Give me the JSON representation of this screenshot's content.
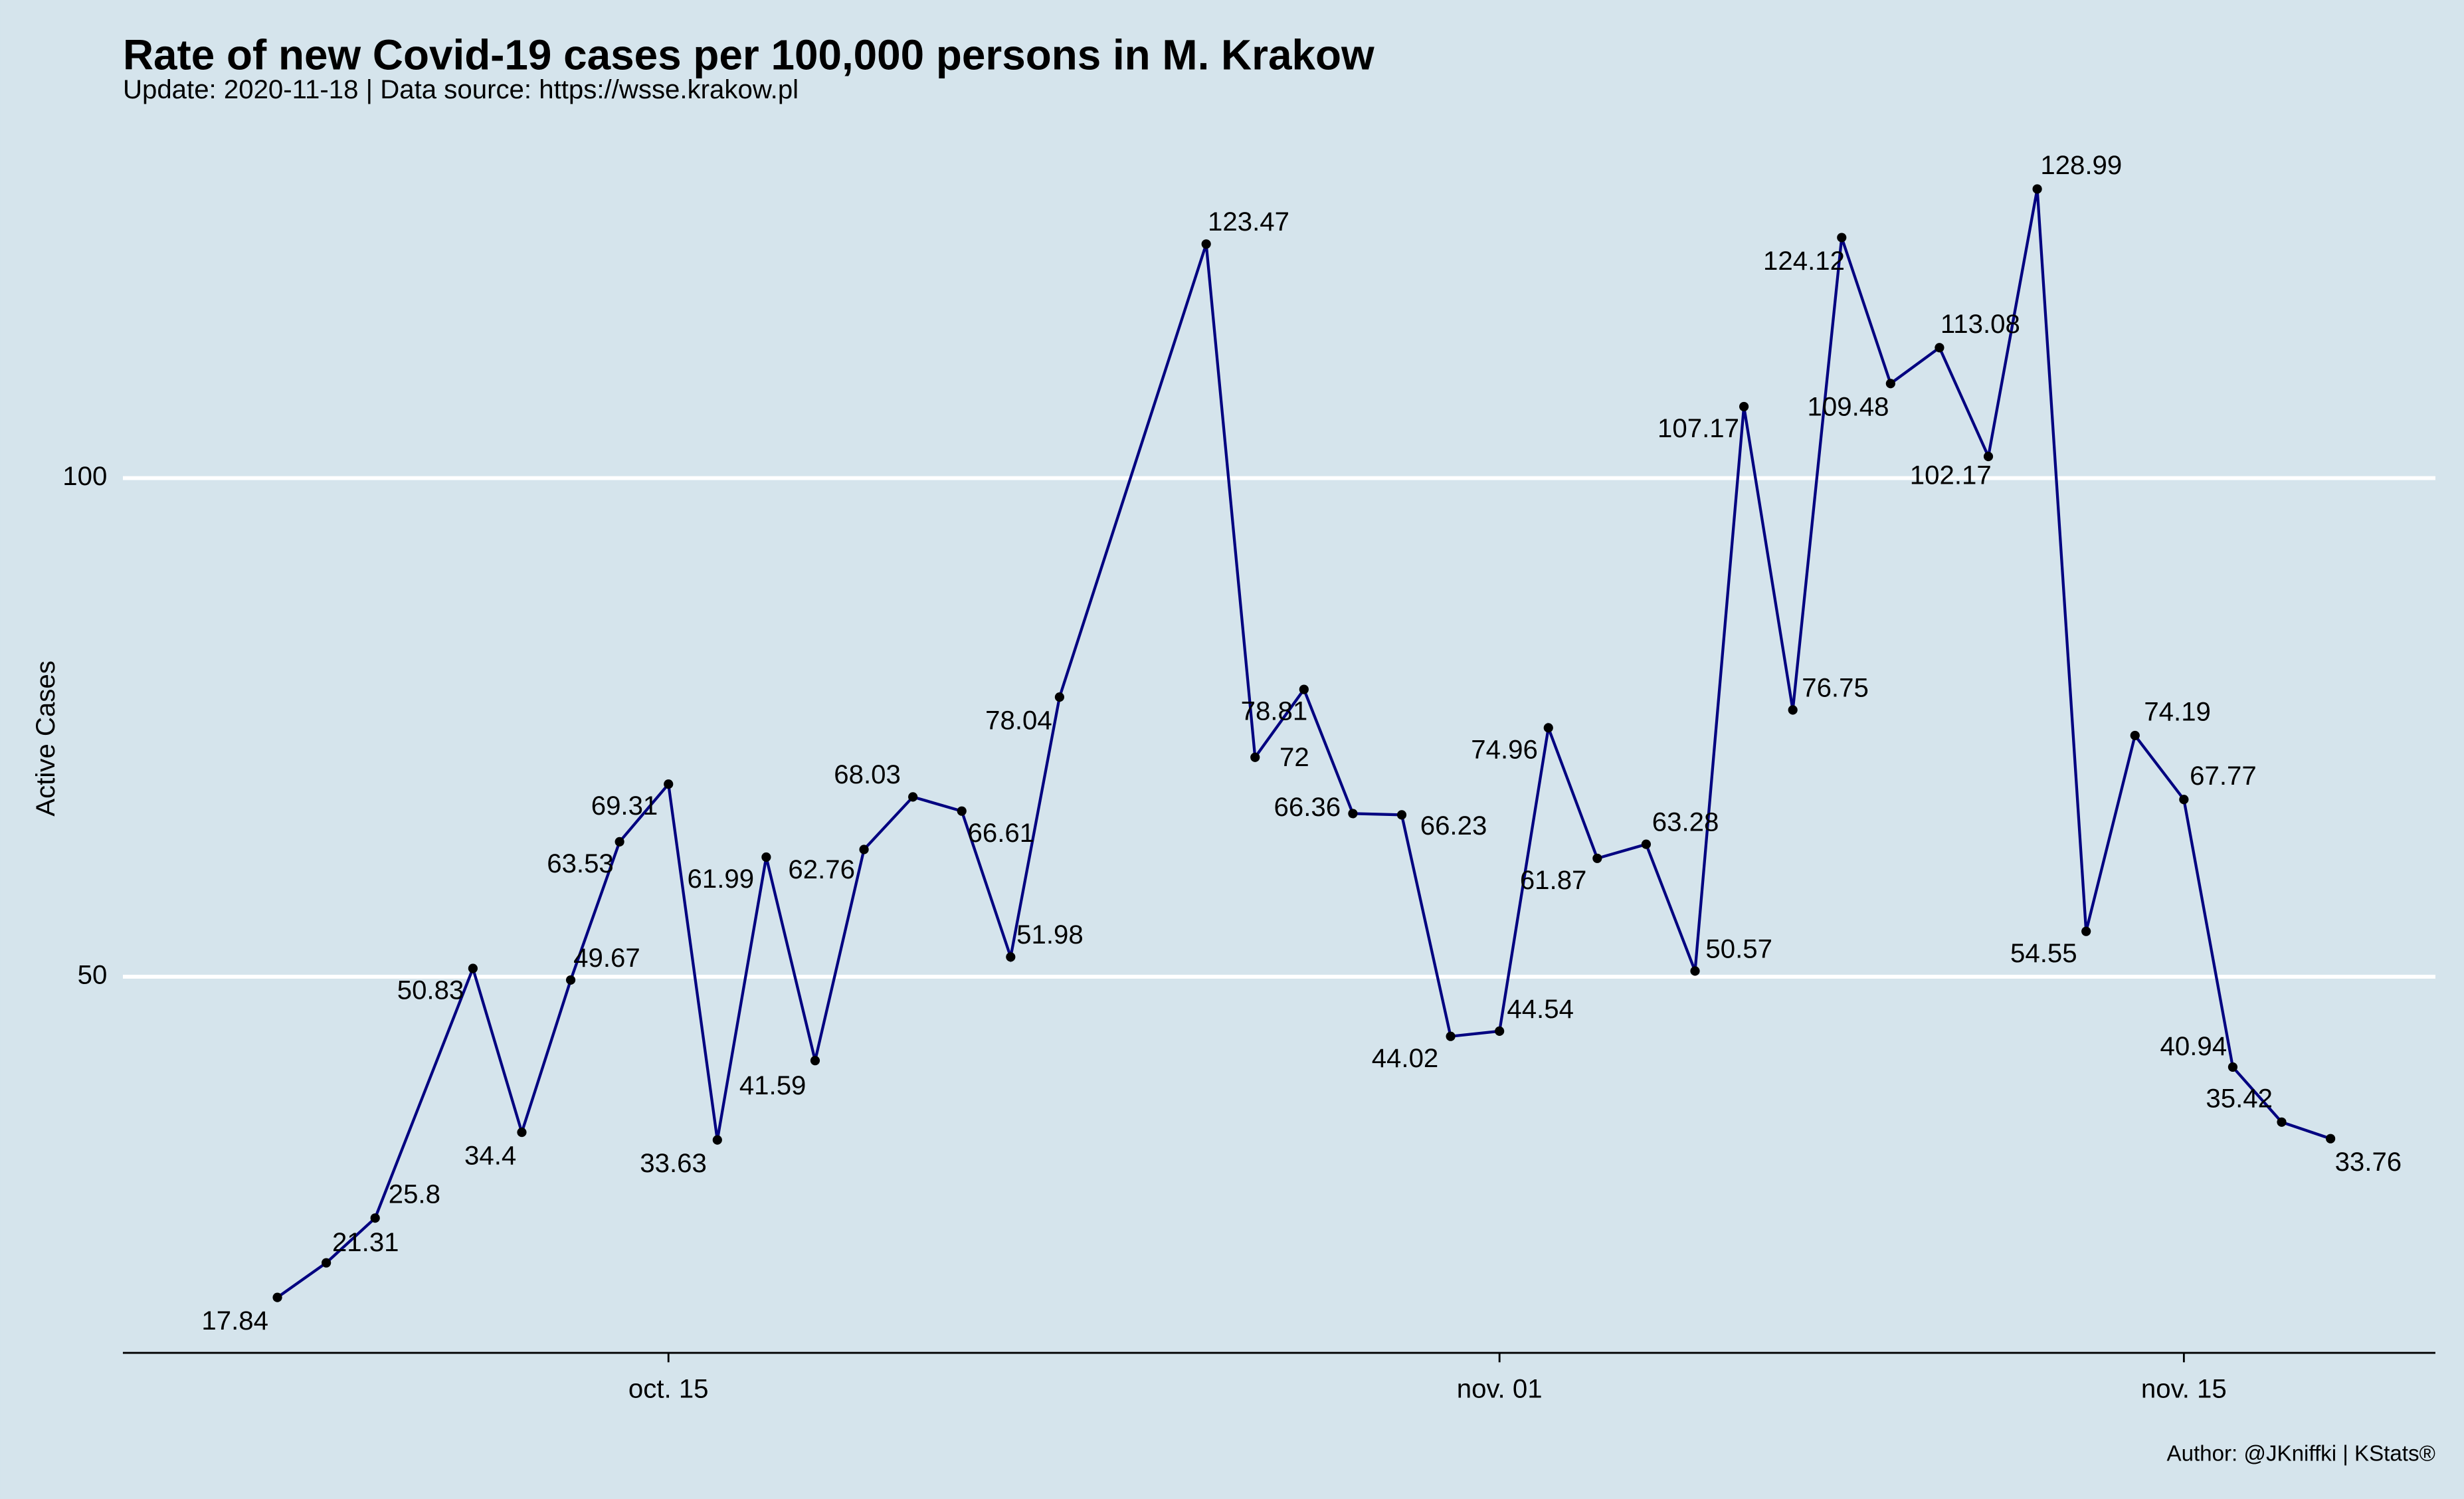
{
  "chart_data": {
    "type": "line",
    "title": "Rate of new Covid-19 cases per 100,000 persons in M. Krakow",
    "subtitle": "Update: 2020-11-18 | Data source: https://wsse.krakow.pl",
    "y_label": "Active Cases",
    "caption": "Author: @JKniffki | KStats®",
    "x": [
      "2020-10-07",
      "2020-10-08",
      "2020-10-09",
      "2020-10-11",
      "2020-10-12",
      "2020-10-13",
      "2020-10-14",
      "2020-10-15",
      "2020-10-16",
      "2020-10-17",
      "2020-10-18",
      "2020-10-19",
      "2020-10-20",
      "2020-10-21",
      "2020-10-22",
      "2020-10-23",
      "2020-10-26",
      "2020-10-27",
      "2020-10-28",
      "2020-10-29",
      "2020-10-30",
      "2020-10-31",
      "2020-11-01",
      "2020-11-02",
      "2020-11-03",
      "2020-11-04",
      "2020-11-05",
      "2020-11-06",
      "2020-11-07",
      "2020-11-08",
      "2020-11-09",
      "2020-11-10",
      "2020-11-11",
      "2020-11-12",
      "2020-11-13",
      "2020-11-14",
      "2020-11-15",
      "2020-11-16",
      "2020-11-17",
      "2020-11-18"
    ],
    "series": [
      {
        "name": "Active Cases",
        "color": "#000080",
        "values": [
          17.84,
          21.31,
          25.8,
          50.83,
          34.4,
          49.67,
          63.53,
          69.31,
          33.63,
          61.99,
          41.59,
          62.76,
          68.03,
          66.61,
          51.98,
          78.04,
          123.47,
          72,
          78.81,
          66.36,
          66.23,
          44.02,
          44.54,
          74.96,
          61.87,
          63.28,
          50.57,
          107.17,
          76.75,
          124.12,
          109.48,
          113.08,
          102.17,
          128.99,
          54.55,
          74.19,
          67.77,
          40.94,
          35.42,
          33.76
        ]
      }
    ],
    "xlim": [
      "2020-10-04",
      "2020-11-20"
    ],
    "xticks": [
      {
        "value": "2020-10-15",
        "label": "oct. 15"
      },
      {
        "value": "2020-11-01",
        "label": "nov. 01"
      },
      {
        "value": "2020-11-15",
        "label": "nov. 15"
      }
    ],
    "ylim": [
      12.28,
      134.55
    ],
    "yticks": [
      50,
      100
    ],
    "grid": true
  }
}
